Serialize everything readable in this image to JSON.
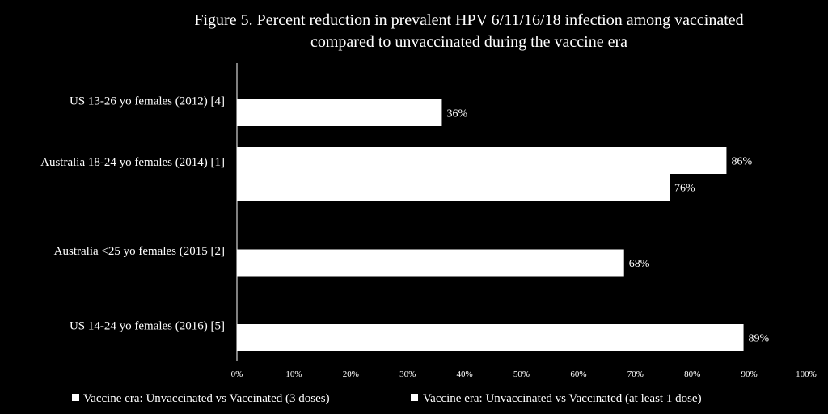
{
  "colors": {
    "background": "#000000",
    "bar": "#ffffff",
    "text": "#ffffff",
    "axis": "#ffffff"
  },
  "chart_data": {
    "type": "bar",
    "orientation": "horizontal",
    "title_lines": [
      "Figure 5. Percent reduction in prevalent HPV 6/11/16/18 infection among vaccinated",
      "compared to unvaccinated during the vaccine era"
    ],
    "categories": [
      "US 13-26 yo females (2012) [4]",
      "Australia 18-24 yo females (2014) [1]",
      "Australia <25 yo females (2015 [2]",
      "US 14-24 yo females (2016) [5]"
    ],
    "series": [
      {
        "name": "Vaccine era: Unvaccinated vs Vaccinated (3 doses)",
        "values": [
          null,
          86,
          null,
          null
        ],
        "labels": [
          "",
          "86%",
          "",
          ""
        ]
      },
      {
        "name": "Vaccine era: Unvaccinated vs Vaccinated (at least 1 dose)",
        "values": [
          36,
          76,
          68,
          89
        ],
        "labels": [
          "36%",
          "76%",
          "68%",
          "89%"
        ]
      }
    ],
    "x_ticks": [
      "0%",
      "10%",
      "20%",
      "30%",
      "40%",
      "50%",
      "60%",
      "70%",
      "80%",
      "90%",
      "100%"
    ],
    "xlim": [
      0,
      100
    ],
    "grid": false,
    "legend_position": "bottom"
  }
}
